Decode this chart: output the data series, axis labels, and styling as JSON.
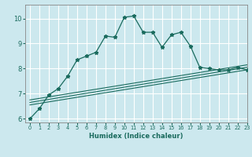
{
  "title": "",
  "xlabel": "Humidex (Indice chaleur)",
  "bg_color": "#cce8ee",
  "grid_color": "#ffffff",
  "line_color": "#1a6b5e",
  "xlim": [
    -0.5,
    23
  ],
  "ylim": [
    5.85,
    10.55
  ],
  "yticks": [
    6,
    7,
    8,
    9,
    10
  ],
  "xticks": [
    0,
    1,
    2,
    3,
    4,
    5,
    6,
    7,
    8,
    9,
    10,
    11,
    12,
    13,
    14,
    15,
    16,
    17,
    18,
    19,
    20,
    21,
    22,
    23
  ],
  "main_x": [
    0,
    1,
    2,
    3,
    4,
    5,
    6,
    7,
    8,
    9,
    10,
    11,
    12,
    13,
    14,
    15,
    16,
    17,
    18,
    19,
    20,
    21,
    22,
    23
  ],
  "main_y": [
    6.0,
    6.4,
    6.95,
    7.2,
    7.7,
    8.35,
    8.5,
    8.65,
    9.3,
    9.25,
    10.05,
    10.1,
    9.45,
    9.45,
    8.85,
    9.35,
    9.45,
    8.9,
    8.05,
    8.0,
    7.95,
    7.95,
    8.05,
    7.95
  ],
  "line2_x": [
    0,
    23
  ],
  "line2_y": [
    6.55,
    7.95
  ],
  "line3_x": [
    0,
    23
  ],
  "line3_y": [
    6.65,
    8.05
  ],
  "line4_x": [
    0,
    23
  ],
  "line4_y": [
    6.75,
    8.15
  ]
}
